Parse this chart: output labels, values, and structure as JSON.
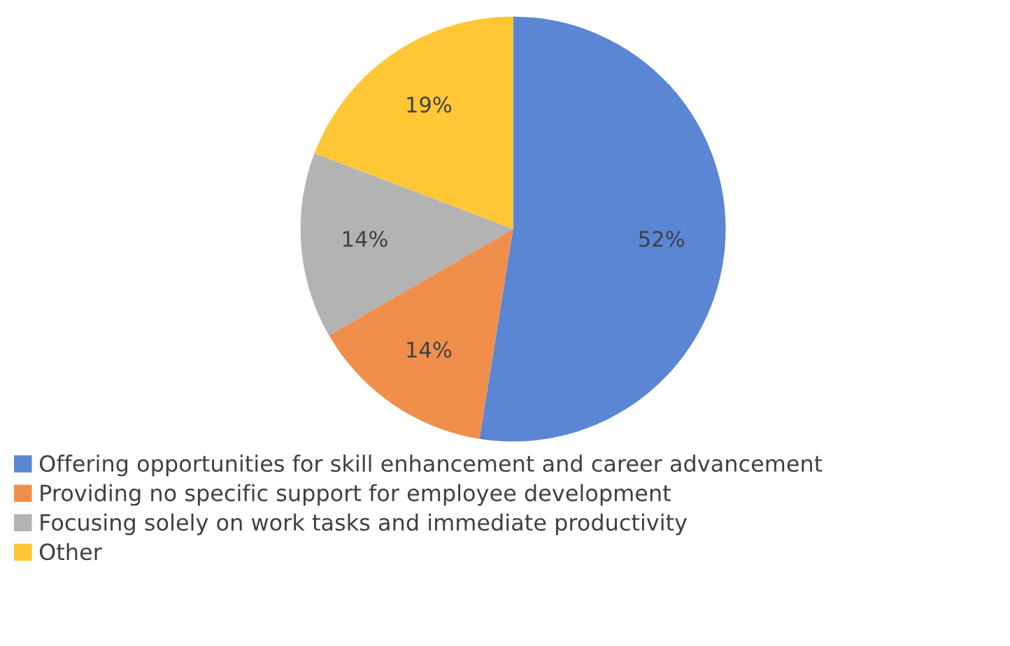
{
  "chart_data": {
    "type": "pie",
    "categories": [
      "Offering opportunities for skill enhancement and career advancement",
      "Providing no specific support for employee development",
      "Focusing solely on work tasks and immediate productivity",
      "Other"
    ],
    "values": [
      52,
      14,
      14,
      19
    ],
    "value_labels": [
      "52%",
      "14%",
      "14%",
      "19%"
    ],
    "colors": [
      "#5a86d4",
      "#f08f4c",
      "#b3b3b3",
      "#ffc735"
    ],
    "legend": "bottom"
  }
}
